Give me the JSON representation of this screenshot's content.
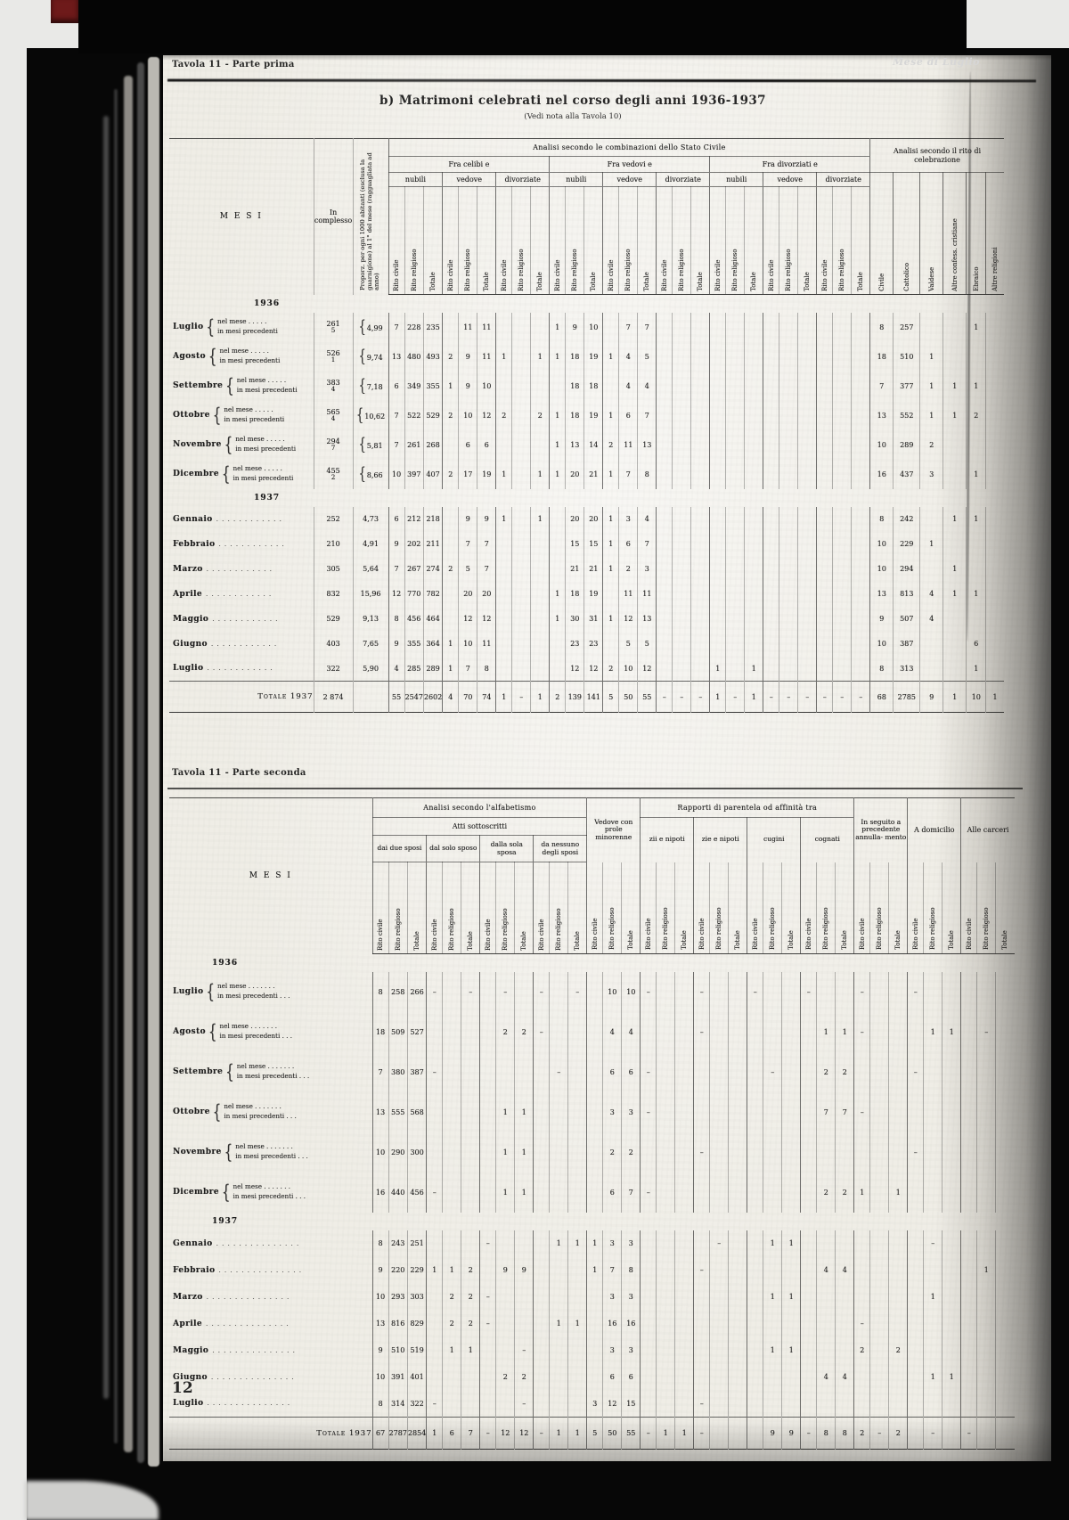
{
  "scan": {
    "corner_label": "Mese di Luglio",
    "page_number": "12"
  },
  "part1": {
    "table_label": "Tavola 11 - Parte prima",
    "title": "b) Matrimoni celebrati nel corso degli anni 1936-1937",
    "subtitle": "(Vedi nota alla Tavola 10)",
    "col_mesi": "M E S I",
    "col_in_complesso": "In complesso",
    "col_proporz": "Proporz. per ogni 1000 abitanti (esclusa la guarnigione) al 1° del mese (ragguagliata ad anno)",
    "group_main": "Analisi secondo le combinazioni dello Stato Civile",
    "group_rito": "Analisi secondo il rito di celebrazione",
    "groups": [
      "Fra celibi e",
      "Fra vedovi e",
      "Fra divorziati e"
    ],
    "subgroups": [
      "nubili",
      "vedove",
      "divorziate"
    ],
    "rito_sub": [
      "Rito civile",
      "Rito religioso",
      "Totale"
    ],
    "rito_celebrazione": [
      "Civile",
      "Cattolico",
      "Valdese",
      "Altre confess. cristiane",
      "Ebraico",
      "Altre religioni"
    ],
    "year_1936": "1936",
    "year_1937": "1937",
    "label_nel_mese": "nel mese",
    "label_prec": "in mesi precedenti",
    "sub_leader": " . . . . .",
    "leader_dots": ". . . . . . . . . . . .",
    "brace": "{",
    "rows_1936": [
      {
        "month": "Luglio",
        "in1": "261",
        "in2": "5",
        "prop": "4,99",
        "cells": [
          "7",
          "228",
          "235",
          "",
          "11",
          "11",
          "",
          "",
          "",
          "1",
          "9",
          "10",
          "",
          "7",
          "7",
          "",
          "",
          "",
          "",
          "",
          "",
          "",
          "",
          "",
          "",
          "",
          ""
        ],
        "rito": [
          "8",
          "257",
          "",
          "",
          "1",
          ""
        ]
      },
      {
        "month": "Agosto",
        "in1": "526",
        "in2": "1",
        "prop": "9,74",
        "cells": [
          "13",
          "480",
          "493",
          "2",
          "9",
          "11",
          "1",
          "",
          "1",
          "1",
          "18",
          "19",
          "1",
          "4",
          "5",
          "",
          "",
          "",
          "",
          "",
          "",
          "",
          "",
          "",
          "",
          "",
          ""
        ],
        "rito": [
          "18",
          "510",
          "1",
          "",
          "",
          ""
        ]
      },
      {
        "month": "Settembre",
        "in1": "383",
        "in2": "4",
        "prop": "7,18",
        "cells": [
          "6",
          "349",
          "355",
          "1",
          "9",
          "10",
          "",
          "",
          "",
          "",
          "18",
          "18",
          "",
          "4",
          "4",
          "",
          "",
          "",
          "",
          "",
          "",
          "",
          "",
          "",
          "",
          "",
          ""
        ],
        "rito": [
          "7",
          "377",
          "1",
          "1",
          "1",
          ""
        ]
      },
      {
        "month": "Ottobre",
        "in1": "565",
        "in2": "4",
        "prop": "10,62",
        "cells": [
          "7",
          "522",
          "529",
          "2",
          "10",
          "12",
          "2",
          "",
          "2",
          "1",
          "18",
          "19",
          "1",
          "6",
          "7",
          "",
          "",
          "",
          "",
          "",
          "",
          "",
          "",
          "",
          "",
          "",
          ""
        ],
        "rito": [
          "13",
          "552",
          "1",
          "1",
          "2",
          ""
        ]
      },
      {
        "month": "Novembre",
        "in1": "294",
        "in2": "7",
        "prop": "5,81",
        "cells": [
          "7",
          "261",
          "268",
          "",
          "6",
          "6",
          "",
          "",
          "",
          "1",
          "13",
          "14",
          "2",
          "11",
          "13",
          "",
          "",
          "",
          "",
          "",
          "",
          "",
          "",
          "",
          "",
          "",
          ""
        ],
        "rito": [
          "10",
          "289",
          "2",
          "",
          "",
          ""
        ]
      },
      {
        "month": "Dicembre",
        "in1": "455",
        "in2": "2",
        "prop": "8,66",
        "cells": [
          "10",
          "397",
          "407",
          "2",
          "17",
          "19",
          "1",
          "",
          "1",
          "1",
          "20",
          "21",
          "1",
          "7",
          "8",
          "",
          "",
          "",
          "",
          "",
          "",
          "",
          "",
          "",
          "",
          "",
          ""
        ],
        "rito": [
          "16",
          "437",
          "3",
          "",
          "1",
          ""
        ]
      }
    ],
    "rows_1937": [
      {
        "month": "Gennaio",
        "in1": "252",
        "prop": "4,73",
        "cells": [
          "6",
          "212",
          "218",
          "",
          "9",
          "9",
          "1",
          "",
          "1",
          "",
          "20",
          "20",
          "1",
          "3",
          "4",
          "",
          "",
          "",
          "",
          "",
          "",
          "",
          "",
          "",
          "",
          "",
          ""
        ],
        "rito": [
          "8",
          "242",
          "",
          "1",
          "1",
          ""
        ]
      },
      {
        "month": "Febbraio",
        "in1": "210",
        "prop": "4,91",
        "cells": [
          "9",
          "202",
          "211",
          "",
          "7",
          "7",
          "",
          "",
          "",
          "",
          "15",
          "15",
          "1",
          "6",
          "7",
          "",
          "",
          "",
          "",
          "",
          "",
          "",
          "",
          "",
          "",
          "",
          ""
        ],
        "rito": [
          "10",
          "229",
          "1",
          "",
          "",
          ""
        ]
      },
      {
        "month": "Marzo",
        "in1": "305",
        "prop": "5,64",
        "cells": [
          "7",
          "267",
          "274",
          "2",
          "5",
          "7",
          "",
          "",
          "",
          "",
          "21",
          "21",
          "1",
          "2",
          "3",
          "",
          "",
          "",
          "",
          "",
          "",
          "",
          "",
          "",
          "",
          "",
          ""
        ],
        "rito": [
          "10",
          "294",
          "",
          "1",
          "",
          ""
        ]
      },
      {
        "month": "Aprile",
        "in1": "832",
        "prop": "15,96",
        "cells": [
          "12",
          "770",
          "782",
          "",
          "20",
          "20",
          "",
          "",
          "",
          "1",
          "18",
          "19",
          "",
          "11",
          "11",
          "",
          "",
          "",
          "",
          "",
          "",
          "",
          "",
          "",
          "",
          "",
          ""
        ],
        "rito": [
          "13",
          "813",
          "4",
          "1",
          "1",
          ""
        ]
      },
      {
        "month": "Maggio",
        "in1": "529",
        "prop": "9,13",
        "cells": [
          "8",
          "456",
          "464",
          "",
          "12",
          "12",
          "",
          "",
          "",
          "1",
          "30",
          "31",
          "1",
          "12",
          "13",
          "",
          "",
          "",
          "",
          "",
          "",
          "",
          "",
          "",
          "",
          "",
          ""
        ],
        "rito": [
          "9",
          "507",
          "4",
          "",
          "",
          ""
        ]
      },
      {
        "month": "Giugno",
        "in1": "403",
        "prop": "7,65",
        "cells": [
          "9",
          "355",
          "364",
          "1",
          "10",
          "11",
          "",
          "",
          "",
          "",
          "23",
          "23",
          "",
          "5",
          "5",
          "",
          "",
          "",
          "",
          "",
          "",
          "",
          "",
          "",
          "",
          "",
          ""
        ],
        "rito": [
          "10",
          "387",
          "",
          "",
          "6",
          ""
        ]
      },
      {
        "month": "Luglio",
        "in1": "322",
        "prop": "5,90",
        "cells": [
          "4",
          "285",
          "289",
          "1",
          "7",
          "8",
          "",
          "",
          "",
          "",
          "12",
          "12",
          "2",
          "10",
          "12",
          "",
          "",
          "",
          "1",
          "",
          "1",
          "",
          "",
          "",
          "",
          "",
          ""
        ],
        "rito": [
          "8",
          "313",
          "",
          "",
          "1",
          ""
        ]
      }
    ],
    "totale": {
      "label": "Totale 1937",
      "in1": "2 874",
      "cells": [
        "55",
        "2547",
        "2602",
        "4",
        "70",
        "74",
        "1",
        "–",
        "1",
        "2",
        "139",
        "141",
        "5",
        "50",
        "55",
        "–",
        "–",
        "–",
        "1",
        "–",
        "1",
        "–",
        "–",
        "–",
        "–",
        "–",
        "–"
      ],
      "rito": [
        "68",
        "2785",
        "9",
        "1",
        "10",
        "1"
      ]
    }
  },
  "part2": {
    "table_label": "Tavola 11 - Parte seconda",
    "col_mesi": "M E S I",
    "group_alfabetismo": "Analisi secondo l'alfabetismo",
    "group_atti": "Atti sottoscritti",
    "atti_groups": [
      "dai due sposi",
      "dal solo sposo",
      "dalla sola sposa",
      "da nessuno degli sposi"
    ],
    "col_vedove": "Vedove con prole minorenne",
    "group_parentela": "Rapporti di parentela od affinità tra",
    "parentela_groups": [
      "zii e nipoti",
      "zie e nipoti",
      "cugini",
      "cognati"
    ],
    "col_annullamento": "In seguito a precedente annulla- mento",
    "col_domicilio": "A domicilio",
    "col_carceri": "Alle carceri",
    "rito_sub": [
      "Rito civile",
      "Rito religioso",
      "Totale"
    ],
    "year_1936": "1936",
    "year_1937": "1937",
    "label_nel_mese": "nel mese",
    "label_prec": "in mesi precedenti",
    "sub_leader1": " . . . . . . .",
    "sub_leader2": " . . .",
    "leader_dots": ". . . . . . . . . . . . . . .",
    "rows_1936": [
      {
        "month": "Luglio",
        "cells": [
          "8",
          "258",
          "266",
          "–",
          "",
          "–",
          "",
          "–",
          "",
          "–",
          "",
          "–",
          "",
          "10",
          "10",
          "–",
          "",
          "",
          "–",
          "",
          "",
          "–",
          "",
          "",
          "–",
          "",
          "",
          "–",
          "",
          "",
          "–",
          "",
          "",
          "",
          "",
          ""
        ]
      },
      {
        "month": "Agosto",
        "cells": [
          "18",
          "509",
          "527",
          "",
          "",
          "",
          "",
          "2",
          "2",
          "–",
          "",
          "",
          "",
          "4",
          "4",
          "",
          "",
          "",
          "–",
          "",
          "",
          "",
          "",
          "",
          "",
          "1",
          "1",
          "–",
          "",
          "",
          "",
          "1",
          "1",
          "",
          "–",
          ""
        ]
      },
      {
        "month": "Settembre",
        "cells": [
          "7",
          "380",
          "387",
          "–",
          "",
          "",
          "",
          "",
          "",
          "",
          "–",
          "",
          "",
          "6",
          "6",
          "–",
          "",
          "",
          "",
          "",
          "",
          "",
          "–",
          "",
          "",
          "2",
          "2",
          "",
          "",
          "",
          "–",
          "",
          "",
          "",
          "",
          ""
        ]
      },
      {
        "month": "Ottobre",
        "cells": [
          "13",
          "555",
          "568",
          "",
          "",
          "",
          "",
          "1",
          "1",
          "",
          "",
          "",
          "",
          "3",
          "3",
          "–",
          "",
          "",
          "",
          "",
          "",
          "",
          "",
          "",
          "",
          "7",
          "7",
          "–",
          "",
          "",
          "",
          "",
          "",
          "",
          "",
          ""
        ]
      },
      {
        "month": "Novembre",
        "cells": [
          "10",
          "290",
          "300",
          "",
          "",
          "",
          "",
          "1",
          "1",
          "",
          "",
          "",
          "",
          "2",
          "2",
          "",
          "",
          "",
          "–",
          "",
          "",
          "",
          "",
          "",
          "",
          "",
          "",
          "",
          "",
          "",
          "–",
          "",
          "",
          "",
          "",
          ""
        ]
      },
      {
        "month": "Dicembre",
        "cells": [
          "16",
          "440",
          "456",
          "–",
          "",
          "",
          "",
          "1",
          "1",
          "",
          "",
          "",
          "",
          "6",
          "7",
          "–",
          "",
          "",
          "",
          "",
          "",
          "",
          "",
          "",
          "",
          "2",
          "2",
          "1",
          "",
          "1",
          "",
          "",
          "",
          "",
          "",
          ""
        ]
      }
    ],
    "rows_1937": [
      {
        "month": "Gennaio",
        "cells": [
          "8",
          "243",
          "251",
          "",
          "",
          "",
          "–",
          "",
          "",
          "",
          "1",
          "1",
          "1",
          "3",
          "3",
          "",
          "",
          "",
          "",
          "–",
          "",
          "",
          "1",
          "1",
          "",
          "",
          "",
          "",
          "",
          "",
          "",
          "–",
          "",
          "",
          "",
          ""
        ]
      },
      {
        "month": "Febbraio",
        "cells": [
          "9",
          "220",
          "229",
          "1",
          "1",
          "2",
          "",
          "9",
          "9",
          "",
          "",
          "",
          "1",
          "7",
          "8",
          "",
          "",
          "",
          "–",
          "",
          "",
          "",
          "",
          "",
          "",
          "4",
          "4",
          "",
          "",
          "",
          "",
          "",
          "",
          "",
          "1",
          ""
        ]
      },
      {
        "month": "Marzo",
        "cells": [
          "10",
          "293",
          "303",
          "",
          "2",
          "2",
          "–",
          "",
          "",
          "",
          "",
          "",
          "",
          "3",
          "3",
          "",
          "",
          "",
          "",
          "",
          "",
          "",
          "1",
          "1",
          "",
          "",
          "",
          "",
          "",
          "",
          "",
          "1",
          "",
          "",
          "",
          ""
        ]
      },
      {
        "month": "Aprile",
        "cells": [
          "13",
          "816",
          "829",
          "",
          "2",
          "2",
          "–",
          "",
          "",
          "",
          "1",
          "1",
          "",
          "16",
          "16",
          "",
          "",
          "",
          "",
          "",
          "",
          "",
          "",
          "",
          "",
          "",
          "",
          "–",
          "",
          "",
          "",
          "",
          "",
          "",
          "",
          ""
        ]
      },
      {
        "month": "Maggio",
        "cells": [
          "9",
          "510",
          "519",
          "",
          "1",
          "1",
          "",
          "",
          "–",
          "",
          "",
          "",
          "",
          "3",
          "3",
          "",
          "",
          "",
          "",
          "",
          "",
          "",
          "1",
          "1",
          "",
          "",
          "",
          "2",
          "",
          "2",
          "",
          "",
          "",
          "",
          "",
          ""
        ]
      },
      {
        "month": "Giugno",
        "cells": [
          "10",
          "391",
          "401",
          "",
          "",
          "",
          "",
          "2",
          "2",
          "",
          "",
          "",
          "",
          "6",
          "6",
          "",
          "",
          "",
          "",
          "",
          "",
          "",
          "",
          "",
          "",
          "4",
          "4",
          "",
          "",
          "",
          "",
          "1",
          "1",
          "",
          "",
          ""
        ]
      },
      {
        "month": "Luglio",
        "cells": [
          "8",
          "314",
          "322",
          "–",
          "",
          "",
          "",
          "",
          "–",
          "",
          "",
          "",
          "3",
          "12",
          "15",
          "",
          "",
          "",
          "–",
          "",
          "",
          "",
          "",
          "",
          "",
          "",
          "",
          "",
          "",
          "",
          "",
          "",
          "",
          "",
          "",
          ""
        ]
      }
    ],
    "totale": {
      "label": "Totale 1937",
      "cells": [
        "67",
        "2787",
        "2854",
        "1",
        "6",
        "7",
        "–",
        "12",
        "12",
        "–",
        "1",
        "1",
        "5",
        "50",
        "55",
        "–",
        "1",
        "1",
        "–",
        "",
        "",
        "",
        "9",
        "9",
        "–",
        "8",
        "8",
        "2",
        "–",
        "2",
        "",
        "–",
        "",
        "–",
        "",
        ""
      ]
    }
  }
}
